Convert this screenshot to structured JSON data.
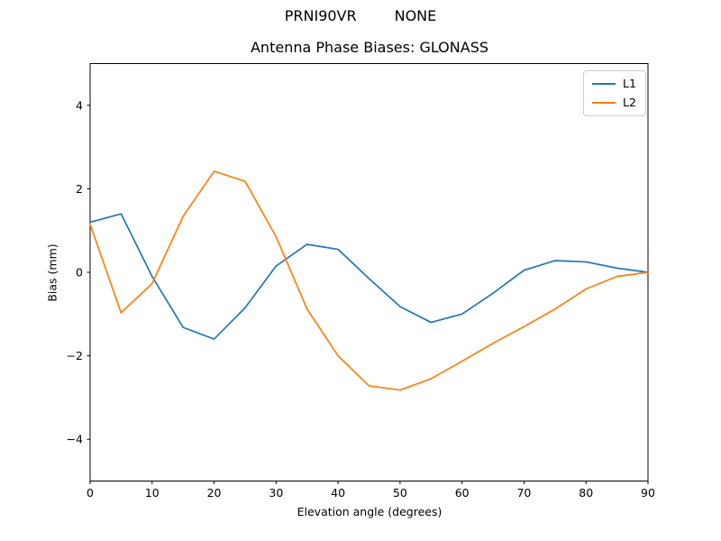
{
  "suptitle": {
    "left": "PRNI90VR",
    "right": "NONE"
  },
  "chart_data": {
    "type": "line",
    "title": "Antenna Phase Biases: GLONASS",
    "xlabel": "Elevation angle (degrees)",
    "ylabel": "Bias (mm)",
    "xlim": [
      0,
      90
    ],
    "ylim": [
      -5,
      5
    ],
    "xticks": [
      0,
      10,
      20,
      30,
      40,
      50,
      60,
      70,
      80,
      90
    ],
    "yticks": [
      -4,
      -2,
      0,
      2,
      4
    ],
    "grid": false,
    "legend_position": "upper right",
    "background": "#ffffff",
    "spine_color": "#000000",
    "x": [
      0,
      5,
      10,
      15,
      20,
      25,
      30,
      35,
      40,
      45,
      50,
      55,
      60,
      65,
      70,
      75,
      80,
      85,
      90
    ],
    "series": [
      {
        "name": "L1",
        "color": "#1f77b4",
        "values": [
          1.2,
          1.4,
          -0.1,
          -1.32,
          -1.6,
          -0.85,
          0.15,
          0.67,
          0.55,
          -0.15,
          -0.82,
          -1.2,
          -1.0,
          -0.5,
          0.05,
          0.28,
          0.25,
          0.1,
          0.0
        ]
      },
      {
        "name": "L2",
        "color": "#ff7f0e",
        "values": [
          1.15,
          -0.97,
          -0.27,
          1.34,
          2.42,
          2.18,
          0.85,
          -0.88,
          -2.0,
          -2.72,
          -2.82,
          -2.55,
          -2.13,
          -1.7,
          -1.3,
          -0.88,
          -0.4,
          -0.1,
          0.0
        ]
      }
    ]
  }
}
